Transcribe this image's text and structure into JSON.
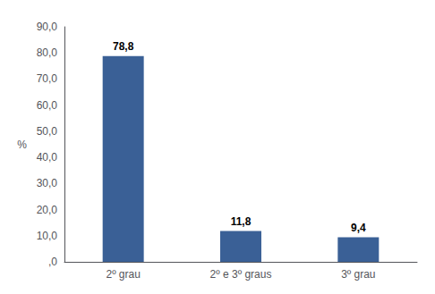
{
  "chart_data": {
    "type": "bar",
    "categories": [
      "2º grau",
      "2º e 3º graus",
      "3º grau"
    ],
    "values": [
      78.8,
      11.8,
      9.4
    ],
    "value_labels": [
      "78,8",
      "11,8",
      "9,4"
    ],
    "data_labels": true,
    "color": "#3A6096",
    "ylabel": "%",
    "ylim": [
      0,
      90
    ],
    "yticks": [
      {
        "value": 0,
        "label": ",0"
      },
      {
        "value": 10,
        "label": "10,0"
      },
      {
        "value": 20,
        "label": "20,0"
      },
      {
        "value": 30,
        "label": "30,0"
      },
      {
        "value": 40,
        "label": "40,0"
      },
      {
        "value": 50,
        "label": "50,0"
      },
      {
        "value": 60,
        "label": "60,0"
      },
      {
        "value": 70,
        "label": "70,0"
      },
      {
        "value": 80,
        "label": "80,0"
      },
      {
        "value": 90,
        "label": "90,0"
      }
    ],
    "grid": false
  }
}
